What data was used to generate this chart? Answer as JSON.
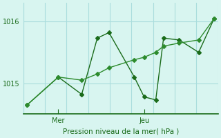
{
  "title": "Pression niveau de la mer( hPa )",
  "bg_color": "#d8f5f0",
  "grid_color": "#aadddd",
  "line_color": "#1a6b1a",
  "line_color2": "#2d8b2d",
  "yticks": [
    1015,
    1016
  ],
  "ylim": [
    1014.5,
    1016.3
  ],
  "xlabel_mer_pos": 0.18,
  "xlabel_jeu_pos": 0.62,
  "series1_x": [
    0.02,
    0.18,
    0.3,
    0.38,
    0.44,
    0.57,
    0.62,
    0.68,
    0.72,
    0.8,
    0.9,
    0.98
  ],
  "series1_y": [
    1014.65,
    1015.1,
    1014.82,
    1015.73,
    1015.82,
    1015.1,
    1014.78,
    1014.73,
    1015.73,
    1015.7,
    1015.5,
    1016.05
  ],
  "series2_x": [
    0.02,
    0.18,
    0.3,
    0.38,
    0.44,
    0.57,
    0.62,
    0.68,
    0.72,
    0.8,
    0.9,
    0.98
  ],
  "series2_y": [
    1014.65,
    1015.1,
    1015.05,
    1015.15,
    1015.25,
    1015.38,
    1015.42,
    1015.5,
    1015.6,
    1015.65,
    1015.7,
    1016.05
  ],
  "marker": "D",
  "marker_size": 3,
  "label_fontsize": 7.5,
  "tick_fontsize": 7
}
